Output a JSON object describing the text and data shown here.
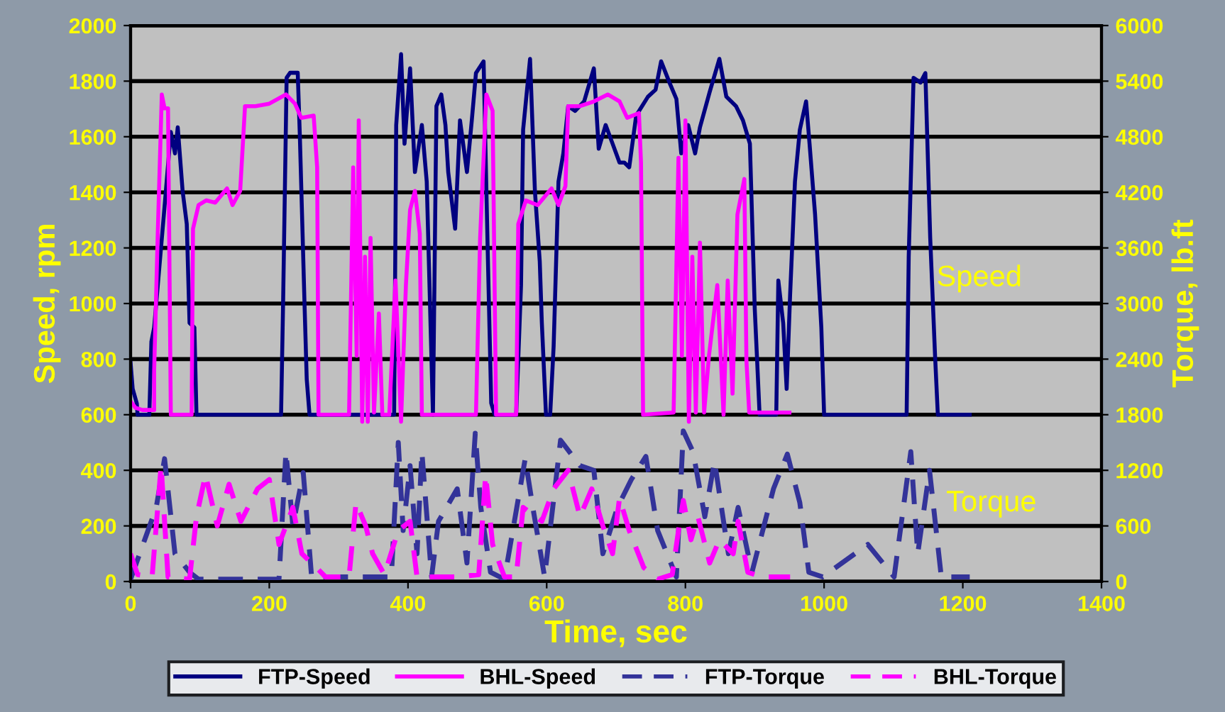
{
  "chart_data": {
    "type": "line",
    "xlabel": "Time, sec",
    "ylabel": "Speed, rpm",
    "y2label": "Torque, lb.ft",
    "xlim": [
      0,
      1400
    ],
    "xticks": [
      0,
      200,
      400,
      600,
      800,
      1000,
      1200,
      1400
    ],
    "ylim": [
      0,
      2000
    ],
    "yticks": [
      0,
      200,
      400,
      600,
      800,
      1000,
      1200,
      1400,
      1600,
      1800,
      2000
    ],
    "y2lim": [
      0,
      6000
    ],
    "y2ticks": [
      0,
      600,
      1200,
      1800,
      2400,
      3000,
      3600,
      4200,
      4800,
      5400,
      6000
    ],
    "grid": "y",
    "legend": "bottom",
    "annotations": [
      "Speed",
      "Torque"
    ],
    "series": [
      {
        "name": "FTP-Speed",
        "color": "#000080",
        "line_style": "solid",
        "x": [
          0,
          3,
          9,
          10,
          27,
          30,
          34,
          48,
          58,
          64,
          68,
          75,
          81,
          85,
          92,
          95,
          217,
          220,
          225,
          230,
          241,
          244,
          251,
          254,
          258,
          380,
          383,
          390,
          395,
          403,
          410,
          420,
          427,
          436,
          441,
          448,
          454,
          458,
          468,
          475,
          485,
          492,
          498,
          509,
          515,
          520,
          525,
          556,
          563,
          566,
          576,
          583,
          590,
          593,
          599,
          605,
          610,
          617,
          624,
          631,
          641,
          654,
          668,
          675,
          685,
          695,
          705,
          712,
          719,
          729,
          746,
          757,
          765,
          777,
          787,
          794,
          804,
          814,
          821,
          835,
          849,
          859,
          873,
          883,
          893,
          900,
          907,
          931,
          934,
          941,
          946,
          951,
          958,
          965,
          974,
          979,
          987,
          996,
          1000,
          1119,
          1122,
          1129,
          1139,
          1146,
          1153,
          1160,
          1164,
          1210
        ],
        "values": [
          786,
          693,
          640,
          600,
          600,
          863,
          914,
          1320,
          1617,
          1540,
          1634,
          1405,
          1286,
          930,
          914,
          600,
          600,
          1015,
          1812,
          1830,
          1830,
          1608,
          981,
          727,
          600,
          600,
          1642,
          1897,
          1575,
          1846,
          1473,
          1642,
          1439,
          600,
          1710,
          1752,
          1642,
          1473,
          1269,
          1659,
          1473,
          1659,
          1829,
          1871,
          1185,
          642,
          600,
          600,
          1066,
          1625,
          1880,
          1405,
          1151,
          930,
          600,
          600,
          846,
          1439,
          1540,
          1710,
          1693,
          1727,
          1846,
          1557,
          1642,
          1575,
          1507,
          1507,
          1490,
          1676,
          1744,
          1769,
          1871,
          1795,
          1736,
          1540,
          1642,
          1540,
          1634,
          1761,
          1880,
          1744,
          1710,
          1659,
          1575,
          981,
          600,
          600,
          1083,
          930,
          693,
          1032,
          1439,
          1625,
          1727,
          1575,
          1320,
          914,
          600,
          600,
          1168,
          1812,
          1795,
          1829,
          1236,
          812,
          600,
          600
        ]
      },
      {
        "name": "BHL-Speed",
        "color": "#ff00ff",
        "line_style": "solid",
        "x": [
          2,
          7,
          17,
          34,
          34,
          39,
          45,
          49,
          54,
          58,
          88,
          90,
          98,
          109,
          122,
          139,
          147,
          158,
          165,
          180,
          200,
          224,
          237,
          246,
          264,
          269,
          271,
          315,
          321,
          326,
          329,
          334,
          338,
          342,
          346,
          351,
          358,
          363,
          373,
          382,
          390,
          397,
          403,
          410,
          417,
          420,
          498,
          504,
          513,
          522,
          527,
          556,
          559,
          570,
          587,
          607,
          617,
          627,
          631,
          648,
          668,
          688,
          705,
          716,
          733,
          736,
          739,
          783,
          790,
          795,
          800,
          805,
          810,
          815,
          821,
          827,
          834,
          846,
          855,
          861,
          868,
          875,
          885,
          888,
          892,
          950
        ],
        "values": [
          642,
          625,
          617,
          617,
          761,
          1236,
          1752,
          1702,
          1702,
          600,
          600,
          1269,
          1354,
          1371,
          1363,
          1414,
          1354,
          1405,
          1710,
          1710,
          1719,
          1752,
          1719,
          1668,
          1676,
          1490,
          600,
          600,
          1490,
          812,
          1659,
          575,
          1168,
          575,
          1236,
          608,
          964,
          600,
          600,
          1083,
          575,
          1066,
          1337,
          1405,
          1252,
          600,
          600,
          1236,
          1752,
          1693,
          600,
          600,
          1286,
          1371,
          1354,
          1414,
          1354,
          1422,
          1710,
          1710,
          1727,
          1752,
          1727,
          1668,
          1685,
          1507,
          600,
          608,
          1524,
          812,
          1659,
          575,
          1168,
          608,
          1219,
          608,
          812,
          1066,
          600,
          1083,
          676,
          1320,
          1448,
          795,
          608,
          608
        ]
      },
      {
        "name": "FTP-Torque",
        "color": "#333399",
        "line_style": "dashed",
        "axis": "y2",
        "x": [
          0,
          37,
          49,
          64,
          85,
          98,
          214,
          224,
          234,
          249,
          261,
          376,
          386,
          393,
          403,
          413,
          420,
          434,
          444,
          471,
          485,
          497,
          505,
          519,
          539,
          569,
          580,
          597,
          620,
          648,
          668,
          681,
          702,
          722,
          743,
          760,
          787,
          797,
          811,
          828,
          842,
          862,
          876,
          896,
          927,
          947,
          965,
          978,
          998,
          1063,
          1101,
          1125,
          1135,
          1152,
          1169,
          1210
        ],
        "values": [
          25,
          800,
          1325,
          300,
          100,
          25,
          25,
          1400,
          600,
          1175,
          50,
          50,
          1500,
          550,
          1250,
          300,
          1400,
          50,
          650,
          1000,
          200,
          1600,
          800,
          100,
          25,
          1325,
          800,
          50,
          1525,
          1250,
          1200,
          300,
          800,
          1100,
          1350,
          550,
          50,
          1625,
          1400,
          700,
          1300,
          300,
          800,
          100,
          1000,
          1375,
          850,
          100,
          50,
          400,
          50,
          1400,
          300,
          1200,
          50,
          50
        ]
      },
      {
        "name": "BHL-Torque",
        "color": "#ff00ff",
        "line_style": "dashed",
        "axis": "y2",
        "x": [
          0,
          10,
          31,
          44,
          54,
          85,
          95,
          108,
          125,
          142,
          159,
          183,
          200,
          214,
          234,
          247,
          268,
          281,
          315,
          325,
          339,
          349,
          366,
          386,
          403,
          413,
          471,
          502,
          512,
          522,
          539,
          556,
          566,
          593,
          610,
          631,
          648,
          665,
          681,
          695,
          705,
          719,
          740,
          760,
          781,
          791,
          797,
          808,
          818,
          835,
          849,
          869,
          876,
          890,
          910,
          951
        ],
        "values": [
          300,
          75,
          50,
          1250,
          50,
          25,
          700,
          1150,
          600,
          1050,
          650,
          1000,
          1100,
          400,
          800,
          300,
          150,
          50,
          50,
          850,
          600,
          300,
          75,
          550,
          650,
          50,
          50,
          75,
          1150,
          400,
          50,
          50,
          800,
          650,
          1000,
          1200,
          700,
          1000,
          600,
          300,
          900,
          550,
          150,
          25,
          75,
          600,
          875,
          450,
          700,
          200,
          450,
          300,
          650,
          100,
          50,
          50
        ]
      }
    ]
  }
}
